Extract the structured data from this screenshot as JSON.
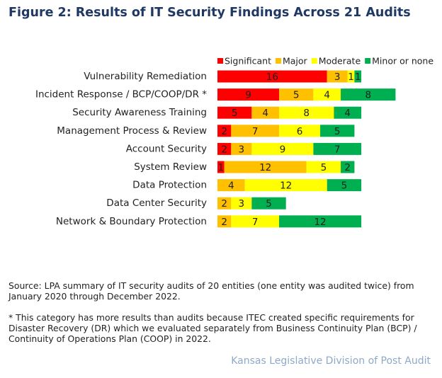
{
  "chart_data": {
    "type": "stacked-bar",
    "title": "Figure 2: Results of IT Security Findings Across 21 Audits",
    "categories": [
      "Vulnerability Remediation",
      "Incident Response / BCP/COOP/DR *",
      "Security Awareness Training",
      "Management Process & Review",
      "Account Security",
      "System Review",
      "Data Protection",
      "Data Center Security",
      "Network & Boundary Protection"
    ],
    "series": [
      {
        "name": "Significant",
        "color": "#ff0000",
        "values": [
          16,
          9,
          5,
          2,
          2,
          1,
          null,
          null,
          null
        ]
      },
      {
        "name": "Major",
        "color": "#ffc000",
        "values": [
          3,
          5,
          4,
          7,
          3,
          12,
          4,
          2,
          2
        ]
      },
      {
        "name": "Moderate",
        "color": "#ffff00",
        "values": [
          1,
          4,
          8,
          6,
          9,
          5,
          12,
          3,
          7
        ]
      },
      {
        "name": "Minor or none",
        "color": "#00b050",
        "values": [
          1,
          8,
          4,
          5,
          7,
          2,
          5,
          5,
          12
        ]
      }
    ],
    "source": "Source: LPA summary of IT security audits of 20 entities (one entity was audited twice) from January 2020 through December 2022.",
    "footnote": "* This category has more results than audits because ITEC created specific requirements for Disaster Recovery (DR) which we evaluated separately from Business Continuity Plan (BCP) / Continuity of Operations Plan (COOP) in 2022.",
    "credit": "Kansas Legislative Division of Post Audit"
  }
}
